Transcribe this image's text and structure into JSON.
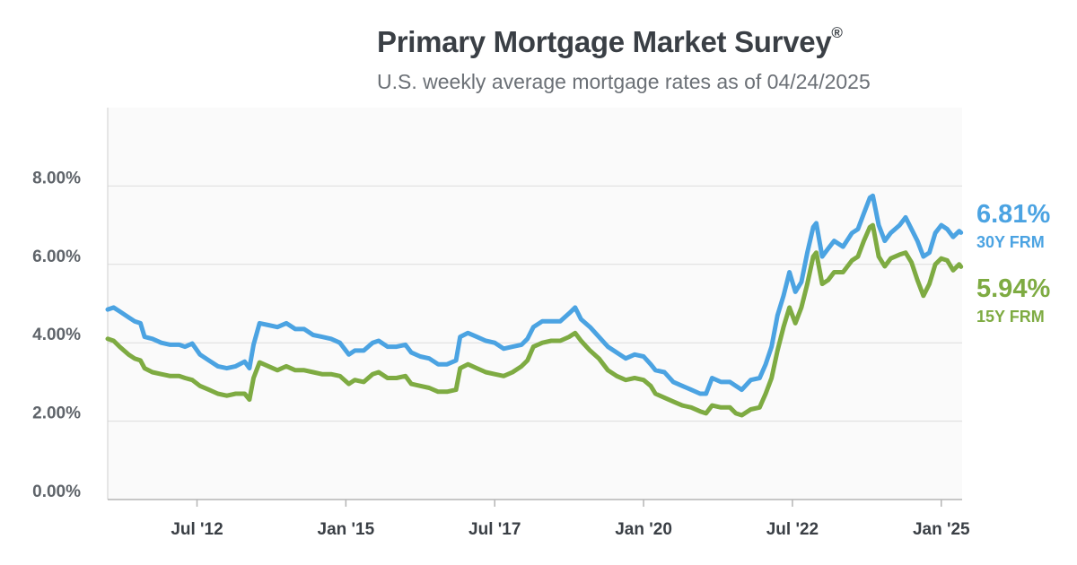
{
  "header": {
    "title": "Primary Mortgage Market Survey",
    "title_mark": "®",
    "subtitle": "U.S. weekly average mortgage rates as of 04/24/2025"
  },
  "chart_data": {
    "type": "line",
    "title": "Primary Mortgage Market Survey®",
    "subtitle": "U.S. weekly average mortgage rates as of 04/24/2025",
    "xlabel": "",
    "ylabel": "",
    "xlim": [
      2011.0,
      2025.35
    ],
    "ylim": [
      0,
      10
    ],
    "grid": true,
    "y_ticks": [
      {
        "value": 0,
        "label": "0.00%"
      },
      {
        "value": 2,
        "label": "2.00%"
      },
      {
        "value": 4,
        "label": "4.00%"
      },
      {
        "value": 6,
        "label": "6.00%"
      },
      {
        "value": 8,
        "label": "8.00%"
      }
    ],
    "x_ticks": [
      {
        "value": 2012.5,
        "label": "Jul '12"
      },
      {
        "value": 2015.0,
        "label": "Jan '15"
      },
      {
        "value": 2017.5,
        "label": "Jul '17"
      },
      {
        "value": 2020.0,
        "label": "Jan '20"
      },
      {
        "value": 2022.5,
        "label": "Jul '22"
      },
      {
        "value": 2025.0,
        "label": "Jan '25"
      }
    ],
    "series": [
      {
        "name": "30Y FRM",
        "color": "#4ba3e2",
        "end_value_label": "6.81%",
        "points": [
          [
            2011.0,
            4.85
          ],
          [
            2011.1,
            4.9
          ],
          [
            2011.2,
            4.8
          ],
          [
            2011.35,
            4.65
          ],
          [
            2011.45,
            4.55
          ],
          [
            2011.55,
            4.5
          ],
          [
            2011.62,
            4.15
          ],
          [
            2011.75,
            4.1
          ],
          [
            2011.9,
            4.0
          ],
          [
            2012.05,
            3.95
          ],
          [
            2012.2,
            3.95
          ],
          [
            2012.3,
            3.9
          ],
          [
            2012.42,
            3.98
          ],
          [
            2012.55,
            3.7
          ],
          [
            2012.7,
            3.55
          ],
          [
            2012.85,
            3.4
          ],
          [
            2013.0,
            3.35
          ],
          [
            2013.15,
            3.4
          ],
          [
            2013.3,
            3.52
          ],
          [
            2013.38,
            3.35
          ],
          [
            2013.45,
            3.95
          ],
          [
            2013.55,
            4.5
          ],
          [
            2013.7,
            4.45
          ],
          [
            2013.85,
            4.4
          ],
          [
            2014.0,
            4.5
          ],
          [
            2014.15,
            4.35
          ],
          [
            2014.3,
            4.35
          ],
          [
            2014.45,
            4.2
          ],
          [
            2014.6,
            4.15
          ],
          [
            2014.75,
            4.1
          ],
          [
            2014.9,
            4.0
          ],
          [
            2015.05,
            3.7
          ],
          [
            2015.15,
            3.8
          ],
          [
            2015.3,
            3.8
          ],
          [
            2015.45,
            4.0
          ],
          [
            2015.55,
            4.05
          ],
          [
            2015.7,
            3.9
          ],
          [
            2015.85,
            3.9
          ],
          [
            2016.0,
            3.95
          ],
          [
            2016.1,
            3.75
          ],
          [
            2016.25,
            3.65
          ],
          [
            2016.4,
            3.6
          ],
          [
            2016.55,
            3.45
          ],
          [
            2016.7,
            3.45
          ],
          [
            2016.85,
            3.55
          ],
          [
            2016.92,
            4.15
          ],
          [
            2017.05,
            4.25
          ],
          [
            2017.2,
            4.15
          ],
          [
            2017.35,
            4.05
          ],
          [
            2017.5,
            4.0
          ],
          [
            2017.65,
            3.85
          ],
          [
            2017.8,
            3.9
          ],
          [
            2017.95,
            3.95
          ],
          [
            2018.05,
            4.1
          ],
          [
            2018.15,
            4.4
          ],
          [
            2018.3,
            4.55
          ],
          [
            2018.45,
            4.55
          ],
          [
            2018.6,
            4.55
          ],
          [
            2018.75,
            4.75
          ],
          [
            2018.85,
            4.9
          ],
          [
            2018.95,
            4.6
          ],
          [
            2019.1,
            4.4
          ],
          [
            2019.25,
            4.15
          ],
          [
            2019.4,
            3.9
          ],
          [
            2019.55,
            3.75
          ],
          [
            2019.7,
            3.6
          ],
          [
            2019.85,
            3.7
          ],
          [
            2020.0,
            3.65
          ],
          [
            2020.12,
            3.45
          ],
          [
            2020.2,
            3.3
          ],
          [
            2020.35,
            3.25
          ],
          [
            2020.5,
            3.0
          ],
          [
            2020.65,
            2.9
          ],
          [
            2020.8,
            2.8
          ],
          [
            2020.95,
            2.7
          ],
          [
            2021.05,
            2.7
          ],
          [
            2021.15,
            3.1
          ],
          [
            2021.3,
            3.0
          ],
          [
            2021.45,
            3.0
          ],
          [
            2021.55,
            2.9
          ],
          [
            2021.65,
            2.8
          ],
          [
            2021.8,
            3.05
          ],
          [
            2021.95,
            3.1
          ],
          [
            2022.05,
            3.45
          ],
          [
            2022.15,
            3.9
          ],
          [
            2022.25,
            4.7
          ],
          [
            2022.35,
            5.2
          ],
          [
            2022.45,
            5.8
          ],
          [
            2022.55,
            5.3
          ],
          [
            2022.65,
            5.55
          ],
          [
            2022.75,
            6.3
          ],
          [
            2022.85,
            6.95
          ],
          [
            2022.9,
            7.05
          ],
          [
            2023.0,
            6.2
          ],
          [
            2023.1,
            6.4
          ],
          [
            2023.2,
            6.6
          ],
          [
            2023.35,
            6.45
          ],
          [
            2023.5,
            6.8
          ],
          [
            2023.6,
            6.9
          ],
          [
            2023.7,
            7.3
          ],
          [
            2023.8,
            7.7
          ],
          [
            2023.85,
            7.75
          ],
          [
            2023.95,
            7.0
          ],
          [
            2024.05,
            6.6
          ],
          [
            2024.15,
            6.8
          ],
          [
            2024.3,
            7.0
          ],
          [
            2024.4,
            7.2
          ],
          [
            2024.5,
            6.9
          ],
          [
            2024.6,
            6.6
          ],
          [
            2024.7,
            6.2
          ],
          [
            2024.8,
            6.3
          ],
          [
            2024.9,
            6.8
          ],
          [
            2025.0,
            7.0
          ],
          [
            2025.1,
            6.9
          ],
          [
            2025.2,
            6.7
          ],
          [
            2025.3,
            6.85
          ],
          [
            2025.33,
            6.81
          ]
        ]
      },
      {
        "name": "15Y FRM",
        "color": "#7eab42",
        "end_value_label": "5.94%",
        "points": [
          [
            2011.0,
            4.1
          ],
          [
            2011.1,
            4.05
          ],
          [
            2011.2,
            3.9
          ],
          [
            2011.35,
            3.7
          ],
          [
            2011.45,
            3.6
          ],
          [
            2011.55,
            3.55
          ],
          [
            2011.62,
            3.35
          ],
          [
            2011.75,
            3.25
          ],
          [
            2011.9,
            3.2
          ],
          [
            2012.05,
            3.15
          ],
          [
            2012.2,
            3.15
          ],
          [
            2012.3,
            3.1
          ],
          [
            2012.42,
            3.05
          ],
          [
            2012.55,
            2.9
          ],
          [
            2012.7,
            2.8
          ],
          [
            2012.85,
            2.7
          ],
          [
            2013.0,
            2.65
          ],
          [
            2013.15,
            2.7
          ],
          [
            2013.3,
            2.7
          ],
          [
            2013.38,
            2.55
          ],
          [
            2013.45,
            3.1
          ],
          [
            2013.55,
            3.5
          ],
          [
            2013.7,
            3.4
          ],
          [
            2013.85,
            3.3
          ],
          [
            2014.0,
            3.4
          ],
          [
            2014.15,
            3.3
          ],
          [
            2014.3,
            3.3
          ],
          [
            2014.45,
            3.25
          ],
          [
            2014.6,
            3.2
          ],
          [
            2014.75,
            3.2
          ],
          [
            2014.9,
            3.15
          ],
          [
            2015.05,
            2.95
          ],
          [
            2015.15,
            3.05
          ],
          [
            2015.3,
            3.0
          ],
          [
            2015.45,
            3.2
          ],
          [
            2015.55,
            3.25
          ],
          [
            2015.7,
            3.1
          ],
          [
            2015.85,
            3.1
          ],
          [
            2016.0,
            3.15
          ],
          [
            2016.1,
            2.95
          ],
          [
            2016.25,
            2.9
          ],
          [
            2016.4,
            2.85
          ],
          [
            2016.55,
            2.75
          ],
          [
            2016.7,
            2.75
          ],
          [
            2016.85,
            2.8
          ],
          [
            2016.92,
            3.35
          ],
          [
            2017.05,
            3.45
          ],
          [
            2017.2,
            3.35
          ],
          [
            2017.35,
            3.25
          ],
          [
            2017.5,
            3.2
          ],
          [
            2017.65,
            3.15
          ],
          [
            2017.8,
            3.25
          ],
          [
            2017.95,
            3.4
          ],
          [
            2018.05,
            3.55
          ],
          [
            2018.15,
            3.9
          ],
          [
            2018.3,
            4.0
          ],
          [
            2018.45,
            4.05
          ],
          [
            2018.6,
            4.05
          ],
          [
            2018.75,
            4.15
          ],
          [
            2018.85,
            4.25
          ],
          [
            2018.95,
            4.05
          ],
          [
            2019.1,
            3.8
          ],
          [
            2019.25,
            3.6
          ],
          [
            2019.4,
            3.3
          ],
          [
            2019.55,
            3.15
          ],
          [
            2019.7,
            3.05
          ],
          [
            2019.85,
            3.1
          ],
          [
            2020.0,
            3.05
          ],
          [
            2020.12,
            2.9
          ],
          [
            2020.2,
            2.7
          ],
          [
            2020.35,
            2.6
          ],
          [
            2020.5,
            2.5
          ],
          [
            2020.65,
            2.4
          ],
          [
            2020.8,
            2.35
          ],
          [
            2020.95,
            2.25
          ],
          [
            2021.05,
            2.2
          ],
          [
            2021.15,
            2.4
          ],
          [
            2021.3,
            2.35
          ],
          [
            2021.45,
            2.35
          ],
          [
            2021.55,
            2.2
          ],
          [
            2021.65,
            2.15
          ],
          [
            2021.8,
            2.3
          ],
          [
            2021.95,
            2.35
          ],
          [
            2022.05,
            2.7
          ],
          [
            2022.15,
            3.1
          ],
          [
            2022.25,
            3.8
          ],
          [
            2022.35,
            4.4
          ],
          [
            2022.45,
            4.9
          ],
          [
            2022.55,
            4.5
          ],
          [
            2022.65,
            4.9
          ],
          [
            2022.75,
            5.5
          ],
          [
            2022.85,
            6.2
          ],
          [
            2022.9,
            6.3
          ],
          [
            2023.0,
            5.5
          ],
          [
            2023.1,
            5.6
          ],
          [
            2023.2,
            5.8
          ],
          [
            2023.35,
            5.8
          ],
          [
            2023.5,
            6.1
          ],
          [
            2023.6,
            6.2
          ],
          [
            2023.7,
            6.6
          ],
          [
            2023.8,
            6.95
          ],
          [
            2023.85,
            7.0
          ],
          [
            2023.95,
            6.2
          ],
          [
            2024.05,
            5.95
          ],
          [
            2024.15,
            6.15
          ],
          [
            2024.3,
            6.25
          ],
          [
            2024.4,
            6.3
          ],
          [
            2024.5,
            6.05
          ],
          [
            2024.6,
            5.6
          ],
          [
            2024.7,
            5.2
          ],
          [
            2024.8,
            5.5
          ],
          [
            2024.9,
            6.0
          ],
          [
            2025.0,
            6.15
          ],
          [
            2025.1,
            6.1
          ],
          [
            2025.2,
            5.85
          ],
          [
            2025.3,
            6.0
          ],
          [
            2025.33,
            5.94
          ]
        ]
      }
    ]
  }
}
